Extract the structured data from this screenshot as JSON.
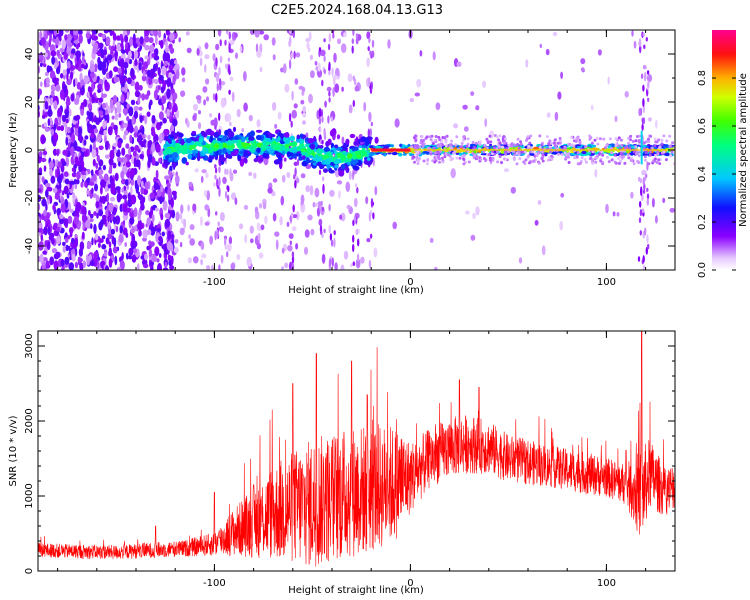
{
  "figure_title": "C2E5.2024.168.04.13.G13",
  "chart_data": [
    {
      "type": "heatmap",
      "xlabel": "Height of straight line (km)",
      "ylabel": "Frequency (Hz)",
      "xlim": [
        -190,
        135
      ],
      "ylim": [
        -50,
        50
      ],
      "xticks": [
        -100,
        0,
        100
      ],
      "yticks": [
        -40,
        -20,
        0,
        20,
        40
      ],
      "colorbar": {
        "label": "Normalized spectral amplitude",
        "range": [
          0,
          1
        ],
        "ticks": [
          0.0,
          0.2,
          0.4,
          0.6,
          0.8
        ],
        "colormap": "rainbow: white to violet to blue to cyan to green to yellow to red to magenta"
      },
      "features": {
        "signal_line_frequency_hz": 0,
        "noise_dense_region_km": [
          -190,
          -120
        ],
        "broad_band_region_km": [
          -125,
          -20
        ],
        "narrow_band_region_km": [
          0,
          135
        ],
        "spike_near_km": 118
      }
    },
    {
      "type": "line",
      "xlabel": "Height of straight line (km)",
      "ylabel": "SNR (10 * v/v)",
      "xlim": [
        -190,
        135
      ],
      "ylim": [
        0,
        3200
      ],
      "xticks": [
        -100,
        0,
        100
      ],
      "yticks": [
        0,
        1000,
        2000,
        3000
      ],
      "line_color": "#ff0000",
      "series": [
        {
          "x": [
            -190,
            -170,
            -150,
            -130,
            -115,
            -100,
            -90,
            -80,
            -70,
            -60,
            -50,
            -40,
            -30,
            -20,
            -10,
            -5,
            0,
            10,
            20,
            30,
            40,
            50,
            60,
            70,
            80,
            90,
            100,
            110,
            118,
            122,
            130,
            135
          ],
          "y": [
            280,
            260,
            250,
            280,
            300,
            360,
            520,
            650,
            780,
            850,
            900,
            980,
            1050,
            1100,
            1150,
            1200,
            1250,
            1500,
            1650,
            1700,
            1650,
            1500,
            1450,
            1400,
            1350,
            1300,
            1250,
            1150,
            1000,
            1300,
            1050,
            1150
          ],
          "spread": [
            120,
            120,
            120,
            130,
            140,
            200,
            400,
            600,
            800,
            950,
            1100,
            1100,
            1100,
            1100,
            1000,
            900,
            600,
            500,
            500,
            500,
            450,
            400,
            380,
            350,
            350,
            350,
            330,
            350,
            800,
            600,
            400,
            400
          ],
          "peaks": [
            [
              -130,
              600
            ],
            [
              -100,
              1050
            ],
            [
              -80,
              1150
            ],
            [
              -60,
              2500
            ],
            [
              -48,
              2900
            ],
            [
              -30,
              2800
            ],
            [
              -22,
              2350
            ],
            [
              25,
              2550
            ],
            [
              35,
              2450
            ],
            [
              118,
              3200
            ]
          ]
        }
      ]
    }
  ]
}
